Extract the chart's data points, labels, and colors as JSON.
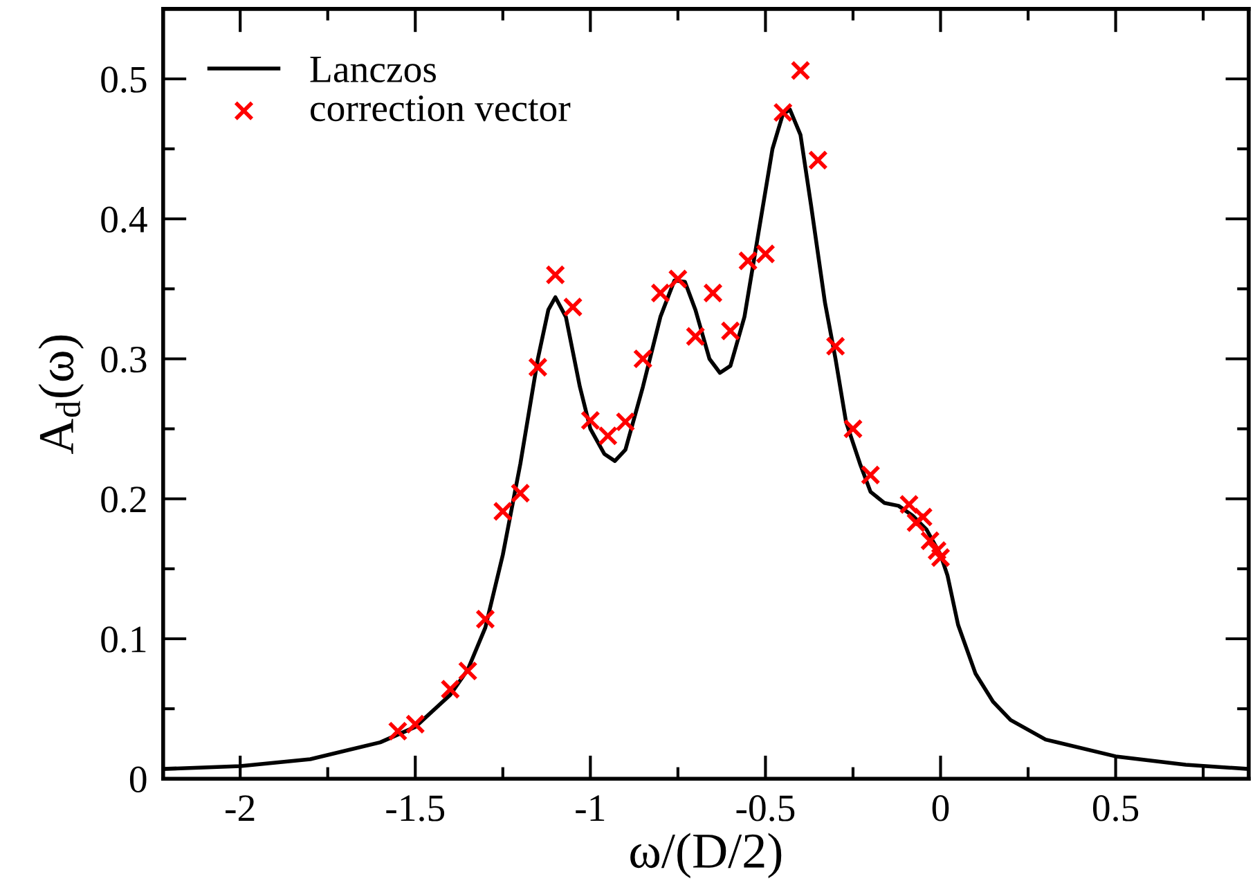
{
  "chart_data": {
    "type": "line",
    "xlabel": "ω/(D/2)",
    "ylabel": "A$_{d}$(ω)",
    "xlim": [
      -2.22,
      0.88
    ],
    "ylim": [
      0,
      0.55
    ],
    "xticks": [
      -2,
      {
        "value": -1.75,
        "label": null
      },
      -1.5,
      {
        "value": -1.25,
        "label": null
      },
      -1,
      {
        "value": -0.75,
        "label": null
      },
      -0.5,
      {
        "value": -0.25,
        "label": null
      },
      0,
      {
        "value": 0.25,
        "label": null
      },
      0.5,
      {
        "value": 0.75,
        "label": null
      }
    ],
    "yticks": [
      0,
      {
        "value": 0.05,
        "label": null
      },
      0.1,
      {
        "value": 0.15,
        "label": null
      },
      0.2,
      {
        "value": 0.25,
        "label": null
      },
      0.3,
      {
        "value": 0.35,
        "label": null
      },
      0.4,
      {
        "value": 0.45,
        "label": null
      },
      0.5
    ],
    "legend": "top left",
    "grid": false,
    "series": [
      {
        "name": "Lanczos",
        "color": "#000000",
        "marker": "none",
        "line_style": "solid",
        "x": [
          -2.22,
          -2.0,
          -1.8,
          -1.6,
          -1.5,
          -1.4,
          -1.35,
          -1.3,
          -1.25,
          -1.2,
          -1.15,
          -1.12,
          -1.1,
          -1.07,
          -1.03,
          -1.0,
          -0.96,
          -0.93,
          -0.9,
          -0.85,
          -0.8,
          -0.76,
          -0.73,
          -0.7,
          -0.66,
          -0.63,
          -0.6,
          -0.56,
          -0.52,
          -0.48,
          -0.45,
          -0.43,
          -0.4,
          -0.37,
          -0.33,
          -0.3,
          -0.27,
          -0.23,
          -0.2,
          -0.16,
          -0.12,
          -0.08,
          -0.04,
          0.0,
          0.02,
          0.05,
          0.1,
          0.15,
          0.2,
          0.3,
          0.5,
          0.7,
          0.88
        ],
        "values": [
          0.007,
          0.009,
          0.014,
          0.026,
          0.037,
          0.06,
          0.078,
          0.108,
          0.16,
          0.225,
          0.3,
          0.335,
          0.344,
          0.33,
          0.28,
          0.25,
          0.232,
          0.227,
          0.235,
          0.28,
          0.33,
          0.356,
          0.355,
          0.335,
          0.3,
          0.29,
          0.295,
          0.33,
          0.39,
          0.45,
          0.475,
          0.478,
          0.46,
          0.41,
          0.34,
          0.3,
          0.255,
          0.225,
          0.205,
          0.197,
          0.195,
          0.188,
          0.178,
          0.16,
          0.145,
          0.11,
          0.075,
          0.055,
          0.042,
          0.028,
          0.016,
          0.01,
          0.007
        ]
      },
      {
        "name": "correction vector",
        "type": "scatter",
        "color": "#ff0000",
        "marker": "cross",
        "x": [
          -1.55,
          -1.5,
          -1.4,
          -1.35,
          -1.3,
          -1.25,
          -1.2,
          -1.15,
          -1.1,
          -1.05,
          -1.0,
          -0.95,
          -0.9,
          -0.85,
          -0.8,
          -0.75,
          -0.7,
          -0.65,
          -0.6,
          -0.55,
          -0.5,
          -0.45,
          -0.4,
          -0.35,
          -0.3,
          -0.25,
          -0.2,
          -0.09,
          -0.07,
          -0.05,
          -0.03,
          -0.01,
          0.0
        ],
        "values": [
          0.034,
          0.039,
          0.064,
          0.077,
          0.114,
          0.191,
          0.204,
          0.294,
          0.36,
          0.337,
          0.256,
          0.245,
          0.255,
          0.3,
          0.347,
          0.357,
          0.316,
          0.347,
          0.32,
          0.37,
          0.375,
          0.476,
          0.506,
          0.442,
          0.309,
          0.25,
          0.217,
          0.196,
          0.183,
          0.187,
          0.17,
          0.163,
          0.158
        ]
      }
    ]
  }
}
